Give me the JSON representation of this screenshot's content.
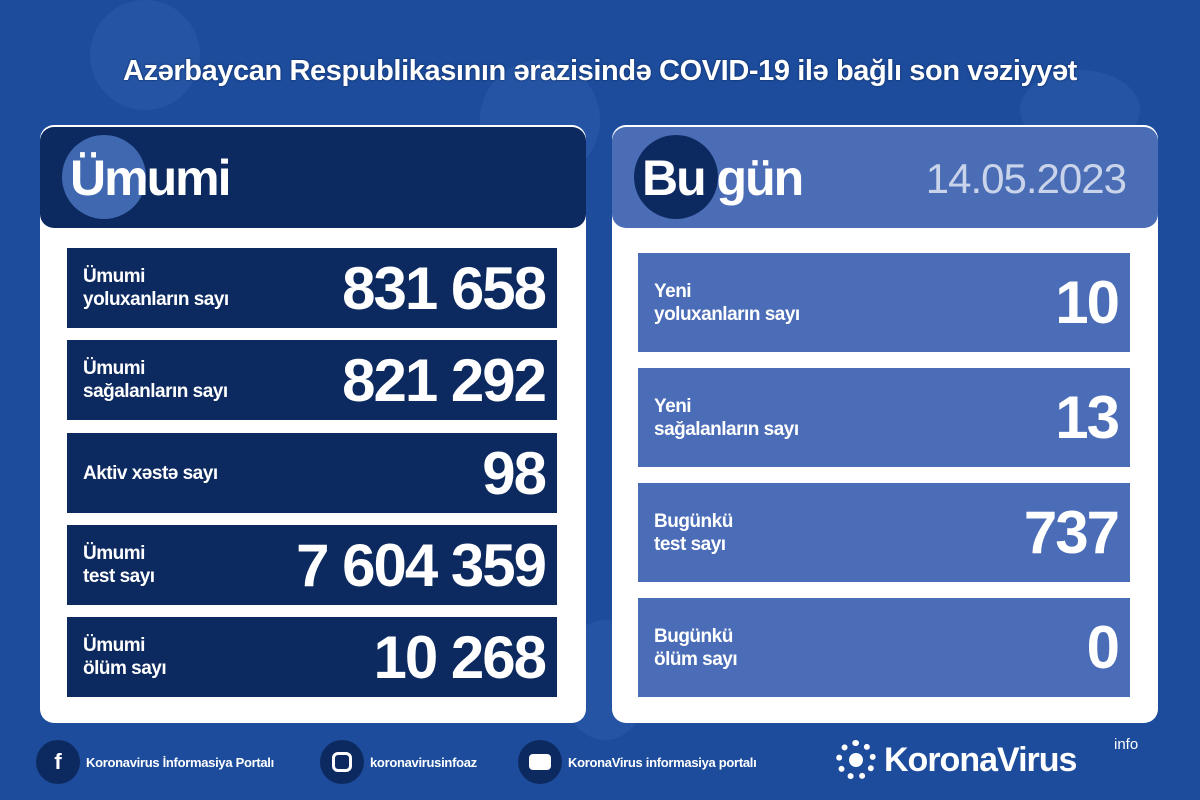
{
  "title": "Azərbaycan Respublikasının ərazisində COVID-19 ilə bağlı son vəziyyət",
  "colors": {
    "background": "#1d4c9c",
    "navy": "#0d2a60",
    "light_blue": "#4b6db7"
  },
  "total": {
    "heading": "Ümumi",
    "rows": [
      {
        "label_1": "Ümumi",
        "label_2": "yoluxanların sayı",
        "value": "831 658"
      },
      {
        "label_1": "Ümumi",
        "label_2": "sağalanların sayı",
        "value": "821 292"
      },
      {
        "label_1": "Aktiv xəstə sayı",
        "label_2": "",
        "value": "98"
      },
      {
        "label_1": "Ümumi",
        "label_2": "test sayı",
        "value": "7 604 359"
      },
      {
        "label_1": "Ümumi",
        "label_2": "ölüm sayı",
        "value": "10 268"
      }
    ]
  },
  "today": {
    "heading": "Bu gün",
    "date": "14.05.2023",
    "rows": [
      {
        "label_1": "Yeni",
        "label_2": "yoluxanların sayı",
        "value": "10"
      },
      {
        "label_1": "Yeni",
        "label_2": "sağalanların sayı",
        "value": "13"
      },
      {
        "label_1": "Bugünkü",
        "label_2": "test sayı",
        "value": "737"
      },
      {
        "label_1": "Bugünkü",
        "label_2": "ölüm sayı",
        "value": "0"
      }
    ]
  },
  "footer": {
    "facebook": "Koronavirus İnformasiya Portalı",
    "instagram": "koronavirusinfoaz",
    "youtube": "KoronaVirus informasiya portalı",
    "brand": "KoronaVirus",
    "brand_sup": "info"
  }
}
